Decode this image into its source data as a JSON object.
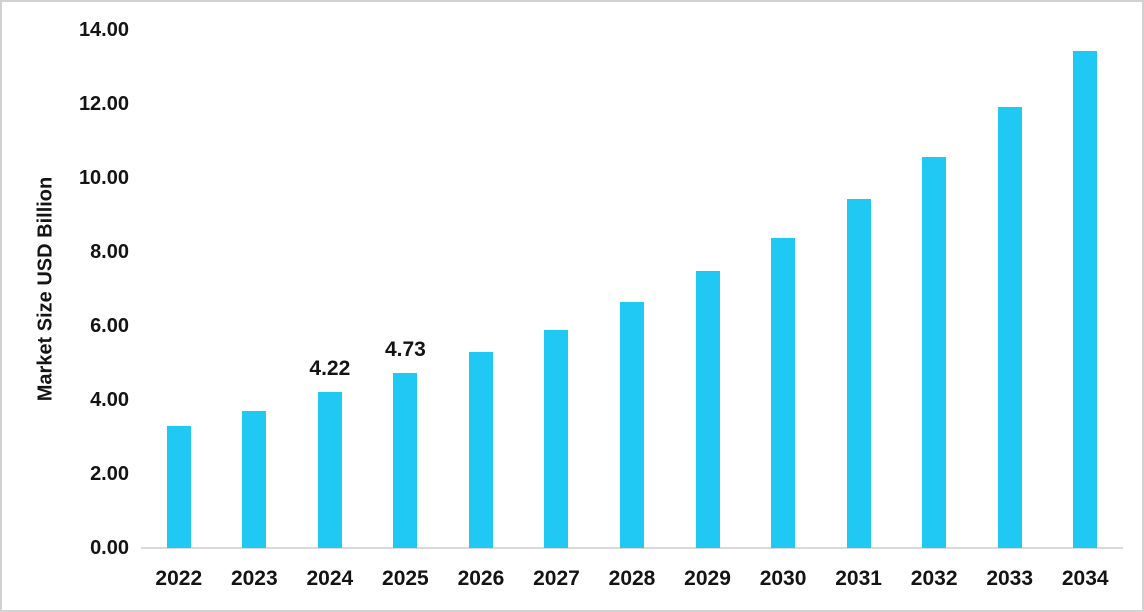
{
  "chart_data": {
    "type": "bar",
    "ylabel": "Market Size USD Billion",
    "xlabel": "",
    "categories": [
      "2022",
      "2023",
      "2024",
      "2025",
      "2026",
      "2027",
      "2028",
      "2029",
      "2030",
      "2031",
      "2032",
      "2033",
      "2034"
    ],
    "values": [
      3.3,
      3.71,
      4.22,
      4.73,
      5.3,
      5.9,
      6.65,
      7.48,
      8.38,
      9.42,
      10.58,
      11.91,
      13.42
    ],
    "bar_labels": [
      "",
      "",
      "4.22",
      "4.73",
      "",
      "",
      "",
      "",
      "",
      "",
      "",
      "",
      ""
    ],
    "ylim": [
      0,
      14
    ],
    "ytick_labels": [
      "0.00",
      "2.00",
      "4.00",
      "6.00",
      "8.00",
      "10.00",
      "12.00",
      "14.00"
    ],
    "grid": false,
    "legend": false,
    "bar_color": "#20C8F4",
    "axis_line_color": "#D9D9D9",
    "text_color": "#141414",
    "border_color": "#D2D2D2"
  }
}
